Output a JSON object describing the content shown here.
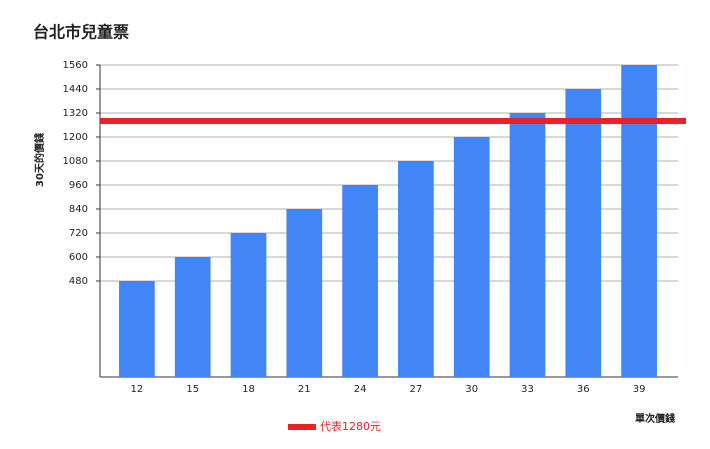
{
  "chart_data": {
    "type": "bar",
    "title": "台北市兒童票",
    "x_label": "單次價錢",
    "y_label": "30天的價錢",
    "categories": [
      "12",
      "15",
      "18",
      "21",
      "24",
      "27",
      "30",
      "33",
      "36",
      "39"
    ],
    "values": [
      480,
      600,
      720,
      840,
      960,
      1080,
      1200,
      1320,
      1440,
      1560
    ],
    "color": "#4285f4",
    "ylim": [
      0,
      1560
    ],
    "yticks": [
      480,
      600,
      720,
      840,
      960,
      1080,
      1200,
      1320,
      1440,
      1560
    ],
    "grid": true,
    "reference_line": {
      "value": 1280,
      "label": "代表1280元",
      "color": "#e8222a"
    }
  }
}
